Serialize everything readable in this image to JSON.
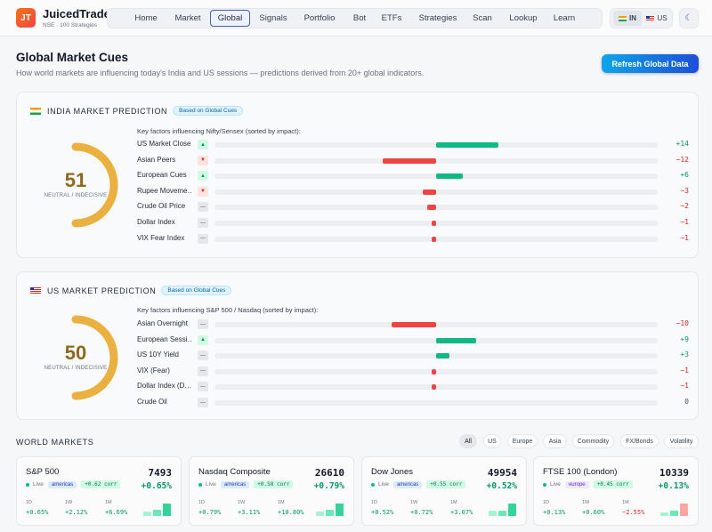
{
  "header": {
    "logo_text": "JT",
    "brand": "JuicedTrade",
    "brand_sub": "NSE · 100 Strategies",
    "nav": [
      "Home",
      "Market",
      "Global",
      "Signals",
      "Portfolio",
      "Bot",
      "ETFs",
      "Strategies",
      "Scan",
      "Lookup",
      "Learn"
    ],
    "active_nav": "Global",
    "region": {
      "in": "IN",
      "us": "US",
      "active": "IN"
    },
    "theme_icon": "moon-icon"
  },
  "page": {
    "title": "Global Market Cues",
    "subtitle": "How world markets are influencing today's India and US sessions — predictions derived from 20+ global indicators.",
    "refresh_label": "Refresh Global Data"
  },
  "india": {
    "title": "INDIA MARKET PREDICTION",
    "badge": "Based on Global Cues",
    "score": "51",
    "score_value": 51,
    "verdict": "NEUTRAL / INDECISIVE",
    "factors_label": "Key factors influencing Nifty/Sensex (sorted by impact):",
    "factors": [
      {
        "name": "US Market Close",
        "dir": "up",
        "value": "+14",
        "impact": 14
      },
      {
        "name": "Asian Peers",
        "dir": "down",
        "value": "−12",
        "impact": -12
      },
      {
        "name": "European Cues",
        "dir": "up",
        "value": "+6",
        "impact": 6
      },
      {
        "name": "Rupee Moveme…",
        "dir": "down",
        "value": "−3",
        "impact": -3
      },
      {
        "name": "Crude Oil Price",
        "dir": "flat",
        "value": "−2",
        "impact": -2
      },
      {
        "name": "Dollar Index",
        "dir": "flat",
        "value": "−1",
        "impact": -1
      },
      {
        "name": "VIX Fear Index",
        "dir": "flat",
        "value": "−1",
        "impact": -1
      }
    ]
  },
  "us": {
    "title": "US MARKET PREDICTION",
    "badge": "Based on Global Cues",
    "score": "50",
    "score_value": 50,
    "verdict": "NEUTRAL / INDECISIVE",
    "factors_label": "Key factors influencing S&P 500 / Nasdaq (sorted by impact):",
    "factors": [
      {
        "name": "Asian Overnight",
        "dir": "flat",
        "value": "−10",
        "impact": -10
      },
      {
        "name": "European Sessi…",
        "dir": "up",
        "value": "+9",
        "impact": 9
      },
      {
        "name": "US 10Y Yield",
        "dir": "flat",
        "value": "+3",
        "impact": 3
      },
      {
        "name": "VIX (Fear)",
        "dir": "flat",
        "value": "−1",
        "impact": -1
      },
      {
        "name": "Dollar Index (D…",
        "dir": "flat",
        "value": "−1",
        "impact": -1
      },
      {
        "name": "Crude Oil",
        "dir": "flat",
        "value": "0",
        "impact": 0
      }
    ]
  },
  "world": {
    "title": "WORLD MARKETS",
    "filters": [
      "All",
      "US",
      "Europe",
      "Asia",
      "Commodity",
      "FX/Bonds",
      "Volatility"
    ],
    "active_filter": "All",
    "markets": [
      {
        "name": "S&P 500",
        "price": "7493",
        "change": "+0.65%",
        "status": "Live",
        "region": "americas",
        "corr": "+0.62 corr",
        "periods": [
          {
            "label": "1D",
            "value": "+0.65%"
          },
          {
            "label": "1W",
            "value": "+2.12%"
          },
          {
            "label": "1M",
            "value": "+6.69%"
          }
        ]
      },
      {
        "name": "Nasdaq Composite",
        "price": "26610",
        "change": "+0.79%",
        "status": "Live",
        "region": "americas",
        "corr": "+0.58 corr",
        "periods": [
          {
            "label": "1D",
            "value": "+0.79%"
          },
          {
            "label": "1W",
            "value": "+3.11%"
          },
          {
            "label": "1M",
            "value": "+10.80%"
          }
        ]
      },
      {
        "name": "Dow Jones",
        "price": "49954",
        "change": "+0.52%",
        "status": "Live",
        "region": "americas",
        "corr": "+0.55 corr",
        "periods": [
          {
            "label": "1D",
            "value": "+0.52%"
          },
          {
            "label": "1W",
            "value": "+0.72%"
          },
          {
            "label": "1M",
            "value": "+3.07%"
          }
        ]
      },
      {
        "name": "FTSE 100 (London)",
        "price": "10339",
        "change": "+0.13%",
        "status": "Live",
        "region": "europe",
        "corr": "+0.45 corr",
        "periods": [
          {
            "label": "1D",
            "value": "+0.13%"
          },
          {
            "label": "1W",
            "value": "+0.60%"
          },
          {
            "label": "1M",
            "value": "−2.55%"
          }
        ]
      }
    ]
  }
}
